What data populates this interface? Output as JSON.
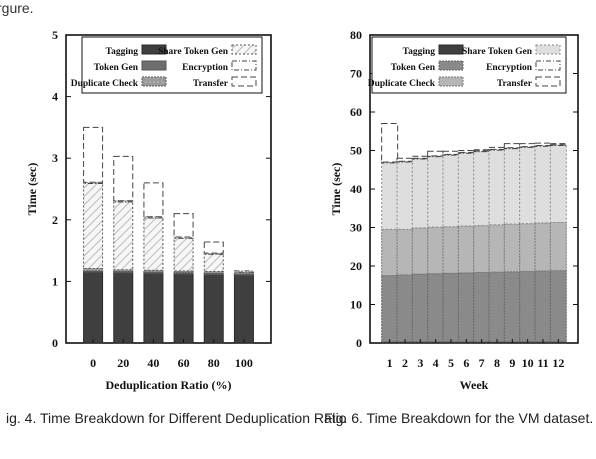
{
  "page": {
    "top_text": "rgure."
  },
  "captions": {
    "left": "ig. 4. Time Breakdown for Different Deduplication Ratio",
    "right": "Fig. 6. Time Breakdown for the VM dataset."
  },
  "chart_data": [
    {
      "type": "bar",
      "stacked": true,
      "title": "",
      "xlabel": "Deduplication Ratio (%)",
      "ylabel": "Time (sec)",
      "ylim": [
        0,
        5
      ],
      "yticks": [
        "0",
        "1",
        "2",
        "3",
        "4",
        "5"
      ],
      "categories": [
        "0",
        "20",
        "40",
        "60",
        "80",
        "100"
      ],
      "legend": {
        "placement": "top",
        "entries": [
          "Tagging",
          "Token Gen",
          "Duplicate Check",
          "Share Token Gen",
          "Encryption",
          "Transfer"
        ]
      },
      "series": [
        {
          "name": "Tagging",
          "values": [
            1.15,
            1.14,
            1.13,
            1.12,
            1.11,
            1.1
          ]
        },
        {
          "name": "Token Gen",
          "values": [
            0.02,
            0.02,
            0.02,
            0.02,
            0.02,
            0.02
          ]
        },
        {
          "name": "Duplicate Check",
          "values": [
            0.04,
            0.03,
            0.03,
            0.03,
            0.03,
            0.03
          ]
        },
        {
          "name": "Share Token Gen",
          "values": [
            1.38,
            1.1,
            0.85,
            0.53,
            0.28,
            0.0
          ]
        },
        {
          "name": "Encryption",
          "values": [
            0.02,
            0.02,
            0.02,
            0.02,
            0.02,
            0.02
          ]
        },
        {
          "name": "Transfer",
          "values": [
            0.89,
            0.72,
            0.55,
            0.38,
            0.18,
            0.0
          ]
        }
      ]
    },
    {
      "type": "bar",
      "stacked": true,
      "title": "",
      "xlabel": "Week",
      "ylabel": "Time (sec)",
      "ylim": [
        0,
        80
      ],
      "yticks": [
        "0",
        "10",
        "20",
        "30",
        "40",
        "50",
        "60",
        "70",
        "80"
      ],
      "categories": [
        "1",
        "2",
        "3",
        "4",
        "5",
        "6",
        "7",
        "8",
        "9",
        "10",
        "11",
        "12"
      ],
      "legend": {
        "placement": "top",
        "entries": [
          "Tagging",
          "Token Gen",
          "Duplicate Check",
          "Share Token Gen",
          "Encryption",
          "Transfer"
        ]
      },
      "series": [
        {
          "name": "Tagging",
          "values": [
            0.3,
            0.3,
            0.3,
            0.3,
            0.3,
            0.3,
            0.3,
            0.3,
            0.3,
            0.3,
            0.3,
            0.3
          ]
        },
        {
          "name": "Token Gen",
          "values": [
            17.2,
            17.4,
            17.6,
            17.7,
            17.8,
            17.9,
            18.0,
            18.1,
            18.2,
            18.3,
            18.4,
            18.5
          ]
        },
        {
          "name": "Duplicate Check",
          "values": [
            12.0,
            11.8,
            12.0,
            12.1,
            12.1,
            12.2,
            12.2,
            12.3,
            12.4,
            12.4,
            12.5,
            12.5
          ]
        },
        {
          "name": "Share Token Gen",
          "values": [
            17.3,
            17.5,
            17.9,
            18.3,
            18.6,
            18.9,
            19.2,
            19.4,
            19.6,
            19.8,
            19.9,
            20.0
          ]
        },
        {
          "name": "Encryption",
          "values": [
            0.2,
            0.2,
            0.2,
            0.2,
            0.2,
            0.2,
            0.2,
            0.2,
            0.2,
            0.2,
            0.2,
            0.2
          ]
        },
        {
          "name": "Transfer",
          "values": [
            10.0,
            0.8,
            0.5,
            1.2,
            0.8,
            0.5,
            0.3,
            0.5,
            1.1,
            0.8,
            0.6,
            0.3
          ]
        }
      ]
    }
  ]
}
